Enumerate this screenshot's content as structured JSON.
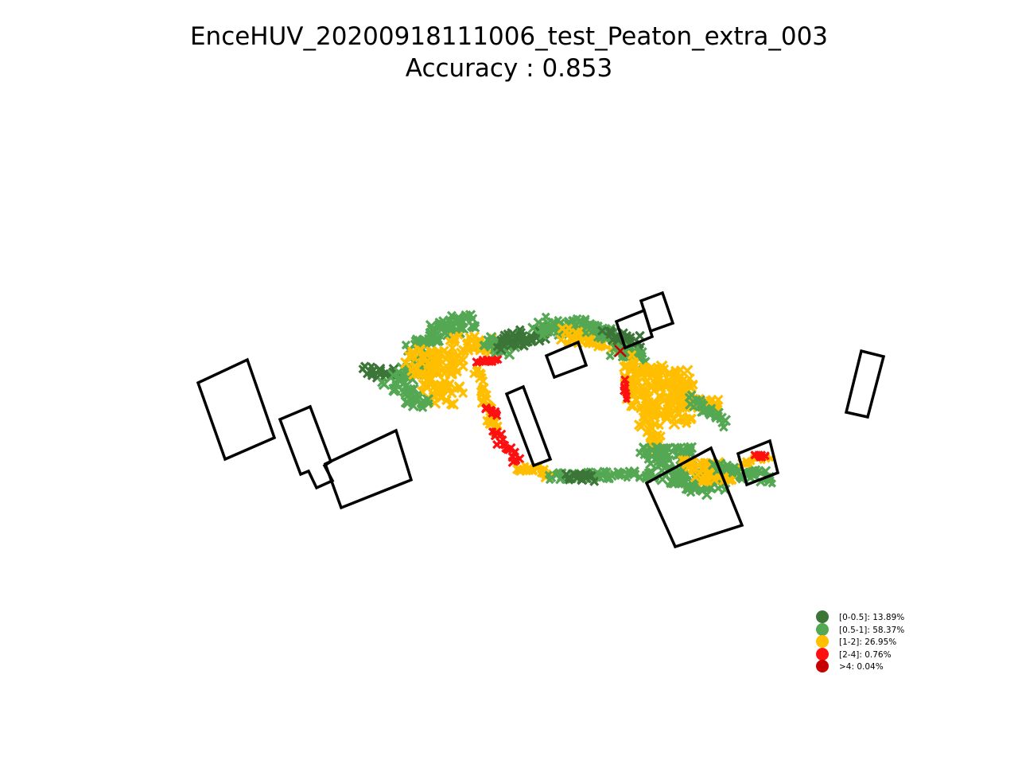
{
  "title": "EnceHUV_20200918111006_test_Peaton_extra_003",
  "subtitle": "Accuracy : 0.853",
  "chart_data": {
    "type": "scatter",
    "title": "EnceHUV_20200918111006_test_Peaton_extra_003",
    "subtitle": "Accuracy : 0.853",
    "accuracy": 0.853,
    "axes_visible": false,
    "grid": false,
    "legend_position": "bottom-right",
    "marker": "x",
    "series": [
      {
        "name": "[0-0.5]: 13.89%",
        "range": "[0-0.5]",
        "percent": 13.89,
        "color": "#3b7538"
      },
      {
        "name": "[0.5-1]: 58.37%",
        "range": "[0.5-1]",
        "percent": 58.37,
        "color": "#55a853"
      },
      {
        "name": "[1-2]: 26.95%",
        "range": "[1-2]",
        "percent": 26.95,
        "color": "#ffbf00"
      },
      {
        "name": "[2-4]: 0.76%",
        "range": "[2-4]",
        "percent": 0.76,
        "color": "#ff1010"
      },
      {
        "name": ">4: 0.04%",
        "range": ">4",
        "percent": 0.04,
        "color": "#c70000"
      }
    ]
  }
}
